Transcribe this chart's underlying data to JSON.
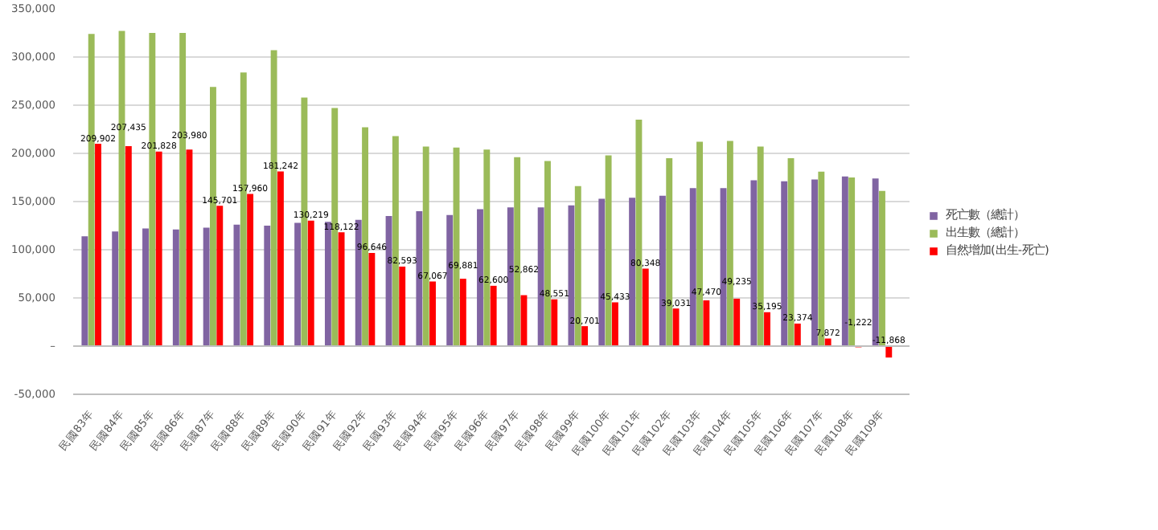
{
  "chart_data": {
    "type": "bar",
    "categories": [
      "民國83年",
      "民國84年",
      "民國85年",
      "民國86年",
      "民國87年",
      "民國88年",
      "民國89年",
      "民國90年",
      "民國91年",
      "民國92年",
      "民國93年",
      "民國94年",
      "民國95年",
      "民國96年",
      "民國97年",
      "民國98年",
      "民國99年",
      "民國100年",
      "民國101年",
      "民國102年",
      "民國103年",
      "民國104年",
      "民國105年",
      "民國106年",
      "民國107年",
      "民國108年",
      "民國109年"
    ],
    "series": [
      {
        "name": "死亡數（總計）",
        "color": "#8064a2",
        "values": [
          114000,
          119000,
          122000,
          121000,
          123000,
          126000,
          125000,
          128000,
          129000,
          131000,
          135000,
          140000,
          136000,
          142000,
          144000,
          144000,
          146000,
          153000,
          154000,
          156000,
          164000,
          164000,
          172000,
          171000,
          173000,
          176000,
          174000
        ]
      },
      {
        "name": "出生數（總計）",
        "color": "#9bbb59",
        "values": [
          324000,
          327000,
          325000,
          325000,
          269000,
          284000,
          307000,
          258000,
          247000,
          227000,
          218000,
          207000,
          206000,
          204000,
          196000,
          192000,
          166000,
          198000,
          235000,
          195000,
          212000,
          213000,
          207000,
          195000,
          181000,
          175000,
          161000
        ]
      },
      {
        "name": "自然增加(出生-死亡)",
        "color": "#ff0000",
        "values": [
          209902,
          207435,
          201828,
          203980,
          145701,
          157960,
          181242,
          130219,
          118122,
          96646,
          82593,
          67067,
          69881,
          62600,
          52862,
          48551,
          20701,
          45433,
          80348,
          39031,
          47470,
          49235,
          35195,
          23374,
          7872,
          -1222,
          -11868
        ],
        "value_labels": [
          "209,902",
          "207,435",
          "201,828",
          "203,980",
          "145,701",
          "157,960",
          "181,242",
          "130,219",
          "118,122",
          "96,646",
          "82,593",
          "67,067",
          "69,881",
          "62,600",
          "52,862",
          "48,551",
          "20,701",
          "45,433",
          "80,348",
          "39,031",
          "47,470",
          "49,235",
          "35,195",
          "23,374",
          "7,872",
          "-1,222",
          "-11,868"
        ]
      }
    ],
    "ylim": [
      -50000,
      350000
    ],
    "yticks": [
      {
        "value": -50000,
        "label": "-50,000"
      },
      {
        "value": 0,
        "label": "–"
      },
      {
        "value": 50000,
        "label": "50,000"
      },
      {
        "value": 100000,
        "label": "100,000"
      },
      {
        "value": 150000,
        "label": "150,000"
      },
      {
        "value": 200000,
        "label": "200,000"
      },
      {
        "value": 250000,
        "label": "250,000"
      },
      {
        "value": 300000,
        "label": "300,000"
      },
      {
        "value": 350000,
        "label": "350,000"
      }
    ],
    "grid": "y",
    "legend": "right"
  }
}
